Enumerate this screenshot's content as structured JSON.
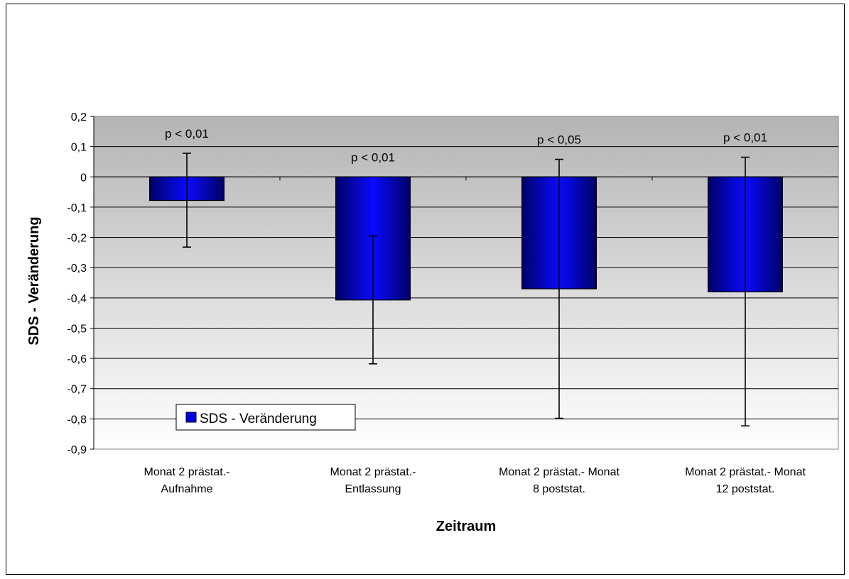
{
  "chart_data": {
    "type": "bar",
    "title": "",
    "xlabel": "Zeitraum",
    "ylabel": "SDS - Veränderung",
    "ylim": [
      -0.9,
      0.2
    ],
    "yticks": [
      "0,2",
      "0,1",
      "0",
      "-0,1",
      "-0,2",
      "-0,3",
      "-0,4",
      "-0,5",
      "-0,6",
      "-0,7",
      "-0,8",
      "-0,9"
    ],
    "categories": [
      [
        "Monat 2 prästat.-",
        "Aufnahme"
      ],
      [
        "Monat 2 prästat.-",
        "Entlassung"
      ],
      [
        "Monat 2 prästat.- Monat",
        "8 poststat."
      ],
      [
        "Monat 2 prästat.- Monat",
        "12 poststat."
      ]
    ],
    "series": [
      {
        "name": "SDS - Veränderung",
        "values": [
          -0.078,
          -0.407,
          -0.37,
          -0.38
        ],
        "error_low": [
          -0.232,
          -0.618,
          -0.798,
          -0.823
        ],
        "error_high": [
          0.078,
          -0.195,
          0.058,
          0.065
        ],
        "color": "#0000e6"
      }
    ],
    "annotations": [
      "p < 0,01",
      "p < 0,01",
      "p < 0,05",
      "p < 0,01"
    ],
    "grid": true,
    "legend": "bottom-left inside plot"
  }
}
